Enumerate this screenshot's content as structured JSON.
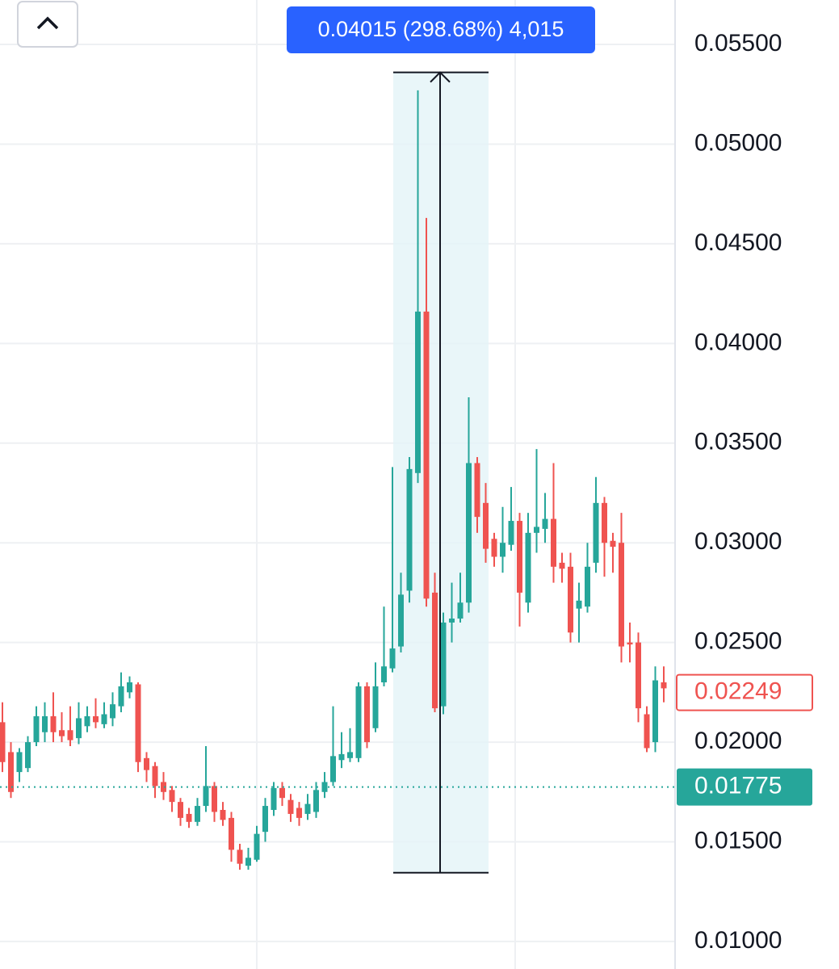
{
  "chart_data": {
    "type": "candlestick",
    "open": [
      0.021,
      0.0195,
      0.0185,
      0.0187,
      0.02,
      0.0205,
      0.0213,
      0.0206,
      0.0206,
      0.0202,
      0.0208,
      0.0213,
      0.0209,
      0.0212,
      0.0218,
      0.0225,
      0.0229,
      0.0192,
      0.0188,
      0.018,
      0.0176,
      0.017,
      0.0164,
      0.016,
      0.0168,
      0.0178,
      0.0166,
      0.0162,
      0.0146,
      0.0138,
      0.0141,
      0.0155,
      0.0166,
      0.0177,
      0.0171,
      0.0167,
      0.0164,
      0.0165,
      0.0175,
      0.018,
      0.0191,
      0.0192,
      0.0192,
      0.0228,
      0.0207,
      0.023,
      0.0237,
      0.0248,
      0.0276,
      0.0335,
      0.0416,
      0.0275,
      0.0218,
      0.026,
      0.0262,
      0.027,
      0.034,
      0.032,
      0.0302,
      0.0293,
      0.0299,
      0.0311,
      0.027,
      0.0305,
      0.0307,
      0.0312,
      0.029,
      0.0288,
      0.0267,
      0.0268,
      0.029,
      0.032,
      0.0301,
      0.03,
      0.025,
      0.025,
      0.0214,
      0.02,
      0.023
    ],
    "high": [
      0.022,
      0.02,
      0.0197,
      0.0203,
      0.0218,
      0.022,
      0.0225,
      0.0215,
      0.0218,
      0.022,
      0.0218,
      0.0222,
      0.022,
      0.0225,
      0.0235,
      0.0233,
      0.023,
      0.0195,
      0.019,
      0.0185,
      0.0178,
      0.0172,
      0.0167,
      0.0172,
      0.0198,
      0.018,
      0.017,
      0.0165,
      0.0149,
      0.0147,
      0.0158,
      0.0172,
      0.018,
      0.018,
      0.0174,
      0.017,
      0.0174,
      0.018,
      0.0185,
      0.0218,
      0.0205,
      0.0207,
      0.023,
      0.023,
      0.024,
      0.0268,
      0.0338,
      0.0285,
      0.0343,
      0.0527,
      0.0463,
      0.0285,
      0.0265,
      0.028,
      0.0285,
      0.0373,
      0.0343,
      0.033,
      0.0305,
      0.0318,
      0.0328,
      0.0315,
      0.0315,
      0.0347,
      0.0325,
      0.034,
      0.0295,
      0.0295,
      0.028,
      0.03,
      0.0333,
      0.0323,
      0.0305,
      0.0315,
      0.026,
      0.0255,
      0.0218,
      0.0238,
      0.0238
    ],
    "low": [
      0.0185,
      0.0172,
      0.018,
      0.0185,
      0.0198,
      0.02,
      0.02,
      0.02,
      0.0198,
      0.0199,
      0.0205,
      0.0207,
      0.0207,
      0.0208,
      0.0215,
      0.0222,
      0.0185,
      0.018,
      0.0172,
      0.0171,
      0.0165,
      0.0158,
      0.0157,
      0.0158,
      0.0165,
      0.016,
      0.0158,
      0.014,
      0.0136,
      0.0136,
      0.014,
      0.015,
      0.0163,
      0.0168,
      0.016,
      0.0158,
      0.0161,
      0.0162,
      0.0172,
      0.0178,
      0.0187,
      0.019,
      0.019,
      0.0197,
      0.0205,
      0.0228,
      0.0235,
      0.0245,
      0.027,
      0.033,
      0.0268,
      0.0215,
      0.0214,
      0.025,
      0.026,
      0.0265,
      0.0305,
      0.029,
      0.0288,
      0.0285,
      0.0296,
      0.0258,
      0.0265,
      0.0295,
      0.03,
      0.028,
      0.028,
      0.025,
      0.025,
      0.0265,
      0.0285,
      0.0283,
      0.0285,
      0.024,
      0.024,
      0.021,
      0.0195,
      0.0195,
      0.022
    ],
    "close": [
      0.019,
      0.0175,
      0.0195,
      0.02,
      0.0213,
      0.0213,
      0.0205,
      0.0203,
      0.0201,
      0.0212,
      0.0213,
      0.021,
      0.0214,
      0.0219,
      0.0228,
      0.023,
      0.019,
      0.0186,
      0.0178,
      0.0175,
      0.017,
      0.0162,
      0.016,
      0.0168,
      0.0178,
      0.0165,
      0.0161,
      0.0146,
      0.0139,
      0.0142,
      0.0154,
      0.0168,
      0.0177,
      0.0172,
      0.0164,
      0.0162,
      0.0169,
      0.0176,
      0.018,
      0.0193,
      0.0194,
      0.0195,
      0.0228,
      0.02,
      0.0228,
      0.0238,
      0.0247,
      0.0274,
      0.0337,
      0.0416,
      0.0272,
      0.0217,
      0.026,
      0.0262,
      0.027,
      0.034,
      0.0313,
      0.0297,
      0.0293,
      0.03,
      0.0311,
      0.0275,
      0.0305,
      0.0308,
      0.0312,
      0.0288,
      0.0287,
      0.0255,
      0.0271,
      0.0288,
      0.032,
      0.03,
      0.0298,
      0.0248,
      0.0249,
      0.0217,
      0.0197,
      0.0231,
      0.0227
    ],
    "up_color": "#26a69a",
    "down_color": "#ef5350",
    "ylim": [
      0.00862,
      0.05723
    ],
    "yticks": [
      {
        "value": 0.01,
        "label": "0.01000"
      },
      {
        "value": 0.015,
        "label": "0.01500"
      },
      {
        "value": 0.02,
        "label": "0.02000"
      },
      {
        "value": 0.025,
        "label": "0.02500"
      },
      {
        "value": 0.03,
        "label": "0.03000"
      },
      {
        "value": 0.035,
        "label": "0.03500"
      },
      {
        "value": 0.04,
        "label": "0.04000"
      },
      {
        "value": 0.045,
        "label": "0.04500"
      },
      {
        "value": 0.05,
        "label": "0.05000"
      },
      {
        "value": 0.055,
        "label": "0.05500"
      }
    ],
    "grid": true,
    "price_labels": [
      {
        "value": 0.02249,
        "color": "#ef5350",
        "style": "outline"
      },
      {
        "value": 0.01775,
        "color": "#26a69a",
        "style": "filled"
      }
    ],
    "measure": {
      "label": "0.04015 (298.68%) 4,015",
      "range": [
        0.01345,
        0.0536
      ],
      "color": "#2962ff"
    }
  }
}
